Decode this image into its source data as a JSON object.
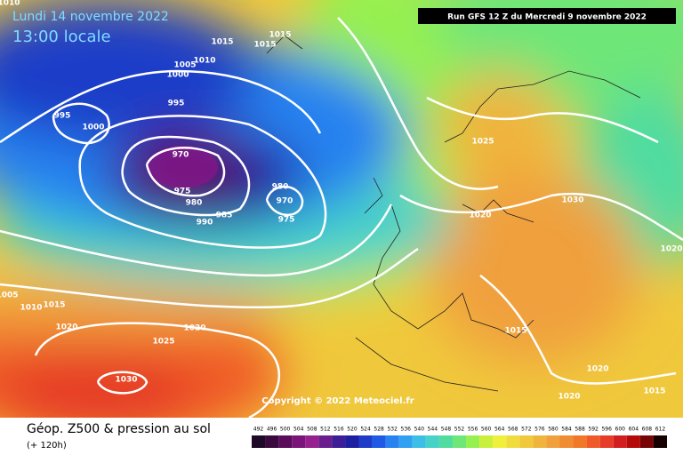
{
  "header": {
    "date": "Lundi 14 novembre 2022",
    "time": "13:00 locale",
    "run": "Run GFS 12 Z du Mercredi 9 novembre 2022"
  },
  "isobar_labels": [
    1010,
    1015,
    1015,
    1015,
    1010,
    1005,
    1000,
    995,
    995,
    1000,
    970,
    975,
    980,
    985,
    990,
    980,
    970,
    975,
    1025,
    1020,
    1030,
    1020,
    1005,
    1010,
    1015,
    1020,
    1025,
    1020,
    1015,
    1020,
    1020,
    1015,
    1030
  ],
  "copyright": "Copyright © 2022 Meteociel.fr",
  "footer": {
    "title": "Géop. Z500 & pression au sol",
    "subtitle": "(+ 120h)"
  },
  "legend": {
    "values": [
      492,
      496,
      500,
      504,
      508,
      512,
      516,
      520,
      524,
      528,
      532,
      536,
      540,
      544,
      548,
      552,
      556,
      560,
      564,
      568,
      572,
      576,
      580,
      584,
      588,
      592,
      596,
      600,
      604,
      608,
      612
    ],
    "colors": [
      "#1e0a28",
      "#3a0a3e",
      "#5a0c5a",
      "#7a1478",
      "#96208e",
      "#6a1e8e",
      "#3c1e96",
      "#1e1ea0",
      "#1e3cc8",
      "#1e5ae6",
      "#2882f0",
      "#32a0f0",
      "#3cbee6",
      "#46d2c8",
      "#50dca0",
      "#6ee678",
      "#96f050",
      "#c8f03c",
      "#f0f03c",
      "#f0dc3c",
      "#f0c83c",
      "#f0b43c",
      "#f0a03c",
      "#f08c32",
      "#f07828",
      "#f05a28",
      "#e63c28",
      "#d21e1e",
      "#b40a0a",
      "#780505",
      "#140000"
    ]
  }
}
